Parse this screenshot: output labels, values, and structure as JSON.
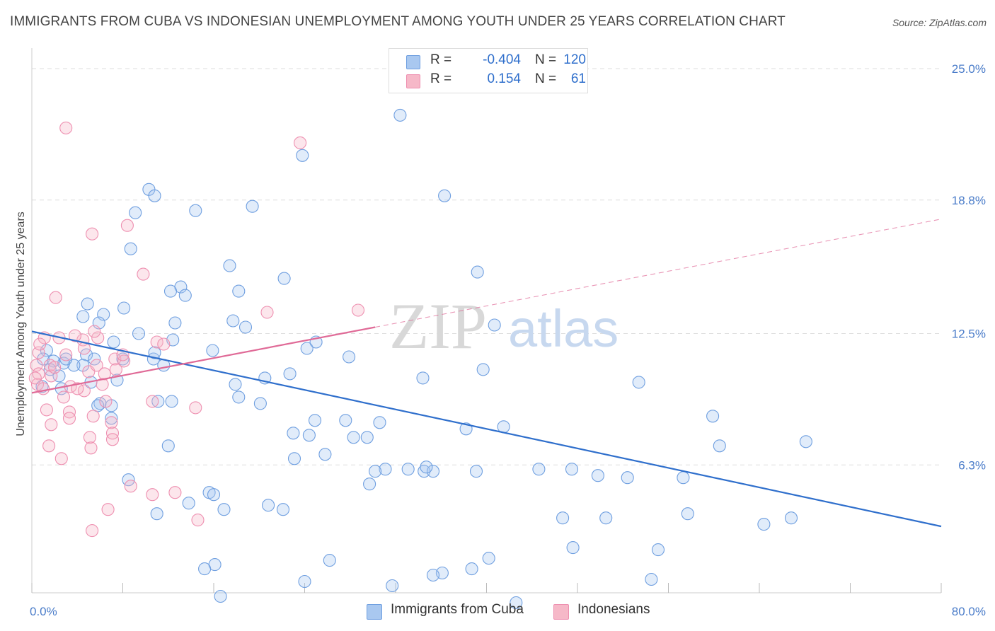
{
  "header": {
    "title": "IMMIGRANTS FROM CUBA VS INDONESIAN UNEMPLOYMENT AMONG YOUTH UNDER 25 YEARS CORRELATION CHART",
    "source": "Source: ZipAtlas.com"
  },
  "watermark": {
    "zip": "ZIP",
    "atlas": "atlas"
  },
  "legend": {
    "rows": [
      {
        "r_label": "R =",
        "r_value": "-0.404",
        "n_label": "N =",
        "n_value": "120",
        "color": "#a9c8f0"
      },
      {
        "r_label": "R =",
        "r_value": "0.154",
        "n_label": "N =",
        "n_value": "61",
        "color": "#f6b8c8"
      }
    ]
  },
  "bottom_legend": {
    "items": [
      {
        "label": "Immigrants from Cuba",
        "color": "#a9c8f0"
      },
      {
        "label": "Indonesians",
        "color": "#f6b8c8"
      }
    ]
  },
  "chart_data": {
    "type": "scatter",
    "title": "IMMIGRANTS FROM CUBA VS INDONESIAN UNEMPLOYMENT AMONG YOUTH UNDER 25 YEARS CORRELATION CHART",
    "xlabel": "",
    "ylabel": "Unemployment Among Youth under 25 years",
    "xlim": [
      0,
      80
    ],
    "ylim": [
      0,
      26
    ],
    "x_tick_labels": [
      "0.0%",
      "80.0%"
    ],
    "y_ticks": [
      6.3,
      12.5,
      18.8,
      25.0
    ],
    "y_tick_labels": [
      "6.3%",
      "12.5%",
      "18.8%",
      "25.0%"
    ],
    "grid": true,
    "colors": {
      "blue_fill": "#a9c8f0",
      "blue_line": "#2f6fcc",
      "pink_fill": "#f6b8c8",
      "pink_line": "#e06a97",
      "axis_text": "#4a7cc9"
    },
    "series": [
      {
        "name": "Immigrants from Cuba",
        "color": "#6f9fe0",
        "trend": {
          "x": [
            0,
            80
          ],
          "y": [
            12.6,
            3.4
          ],
          "style": "solid"
        },
        "points": [
          [
            32.4,
            22.8
          ],
          [
            23.8,
            20.9
          ],
          [
            36.3,
            19.0
          ],
          [
            10.3,
            19.3
          ],
          [
            10.8,
            19.0
          ],
          [
            9.1,
            18.2
          ],
          [
            14.4,
            18.3
          ],
          [
            19.4,
            18.5
          ],
          [
            8.7,
            16.5
          ],
          [
            17.4,
            15.7
          ],
          [
            22.2,
            15.1
          ],
          [
            39.2,
            15.4
          ],
          [
            13.1,
            14.7
          ],
          [
            12.2,
            14.5
          ],
          [
            13.5,
            14.3
          ],
          [
            18.2,
            14.5
          ],
          [
            4.9,
            13.9
          ],
          [
            6.3,
            13.4
          ],
          [
            8.1,
            13.7
          ],
          [
            4.5,
            13.3
          ],
          [
            5.9,
            13.0
          ],
          [
            12.6,
            13.0
          ],
          [
            17.7,
            13.1
          ],
          [
            18.8,
            12.8
          ],
          [
            40.7,
            12.9
          ],
          [
            9.4,
            12.5
          ],
          [
            7.2,
            12.1
          ],
          [
            12.4,
            12.2
          ],
          [
            15.9,
            11.7
          ],
          [
            4.8,
            11.5
          ],
          [
            5.5,
            11.3
          ],
          [
            8.0,
            11.3
          ],
          [
            10.7,
            11.3
          ],
          [
            11.6,
            11.0
          ],
          [
            24.2,
            11.8
          ],
          [
            27.9,
            11.4
          ],
          [
            4.5,
            11.0
          ],
          [
            3.7,
            11.0
          ],
          [
            2.8,
            11.1
          ],
          [
            1.3,
            11.7
          ],
          [
            1.0,
            11.3
          ],
          [
            1.9,
            11.2
          ],
          [
            2.4,
            10.5
          ],
          [
            1.6,
            10.8
          ],
          [
            7.5,
            10.3
          ],
          [
            5.2,
            10.2
          ],
          [
            0.9,
            10.0
          ],
          [
            2.6,
            9.9
          ],
          [
            25.0,
            12.1
          ],
          [
            17.9,
            10.1
          ],
          [
            20.5,
            10.4
          ],
          [
            22.7,
            10.6
          ],
          [
            34.4,
            10.4
          ],
          [
            39.7,
            10.8
          ],
          [
            53.4,
            10.2
          ],
          [
            6.0,
            9.2
          ],
          [
            18.2,
            9.5
          ],
          [
            20.1,
            9.2
          ],
          [
            24.9,
            8.4
          ],
          [
            27.6,
            8.4
          ],
          [
            30.6,
            8.3
          ],
          [
            38.2,
            8.0
          ],
          [
            41.5,
            8.1
          ],
          [
            59.9,
            8.6
          ],
          [
            12.3,
            9.3
          ],
          [
            5.8,
            9.1
          ],
          [
            7.0,
            9.1
          ],
          [
            23.0,
            7.8
          ],
          [
            24.4,
            7.7
          ],
          [
            28.3,
            7.6
          ],
          [
            29.5,
            7.6
          ],
          [
            12.0,
            7.2
          ],
          [
            23.1,
            6.6
          ],
          [
            25.8,
            6.8
          ],
          [
            60.5,
            7.2
          ],
          [
            68.1,
            7.4
          ],
          [
            31.1,
            6.1
          ],
          [
            30.2,
            6.0
          ],
          [
            34.5,
            6.0
          ],
          [
            35.3,
            6.0
          ],
          [
            39.1,
            6.0
          ],
          [
            44.6,
            6.1
          ],
          [
            47.5,
            6.1
          ],
          [
            49.8,
            5.8
          ],
          [
            52.4,
            5.7
          ],
          [
            57.3,
            5.7
          ],
          [
            34.7,
            6.2
          ],
          [
            33.1,
            6.1
          ],
          [
            8.5,
            5.6
          ],
          [
            29.7,
            5.4
          ],
          [
            15.6,
            5.0
          ],
          [
            16.0,
            4.9
          ],
          [
            13.8,
            4.5
          ],
          [
            16.9,
            4.2
          ],
          [
            20.8,
            4.4
          ],
          [
            22.1,
            4.2
          ],
          [
            11.0,
            4.0
          ],
          [
            46.7,
            3.8
          ],
          [
            50.5,
            3.8
          ],
          [
            57.7,
            4.0
          ],
          [
            66.8,
            3.8
          ],
          [
            64.4,
            3.5
          ],
          [
            47.6,
            2.4
          ],
          [
            40.2,
            1.9
          ],
          [
            55.1,
            2.3
          ],
          [
            16.1,
            1.6
          ],
          [
            15.2,
            1.4
          ],
          [
            26.2,
            1.8
          ],
          [
            38.7,
            1.4
          ],
          [
            36.1,
            1.2
          ],
          [
            24.0,
            0.8
          ],
          [
            35.3,
            1.1
          ],
          [
            54.5,
            0.9
          ],
          [
            31.7,
            0.6
          ],
          [
            16.6,
            0.1
          ],
          [
            42.6,
            -0.2
          ],
          [
            10.8,
            11.6
          ],
          [
            3.0,
            11.3
          ],
          [
            11.1,
            9.3
          ],
          [
            7.0,
            8.5
          ]
        ]
      },
      {
        "name": "Indonesians",
        "color": "#ee8fb0",
        "trend": {
          "x": [
            0,
            30.2
          ],
          "y": [
            9.7,
            12.8
          ],
          "style": "solid",
          "extended": {
            "x": [
              30.2,
              80
            ],
            "y": [
              12.8,
              17.9
            ],
            "style": "dashed"
          }
        },
        "points": [
          [
            3.0,
            22.2
          ],
          [
            23.6,
            21.5
          ],
          [
            8.4,
            17.6
          ],
          [
            5.3,
            17.2
          ],
          [
            9.8,
            15.3
          ],
          [
            2.1,
            14.2
          ],
          [
            20.7,
            13.5
          ],
          [
            28.7,
            13.6
          ],
          [
            5.8,
            12.3
          ],
          [
            11.0,
            12.1
          ],
          [
            11.6,
            12.0
          ],
          [
            4.5,
            12.2
          ],
          [
            2.4,
            12.3
          ],
          [
            0.6,
            11.6
          ],
          [
            7.3,
            11.3
          ],
          [
            8.1,
            11.2
          ],
          [
            3.0,
            11.5
          ],
          [
            0.4,
            11.0
          ],
          [
            1.6,
            11.0
          ],
          [
            5.0,
            10.7
          ],
          [
            0.6,
            10.6
          ],
          [
            1.7,
            10.5
          ],
          [
            7.4,
            10.8
          ],
          [
            0.5,
            10.1
          ],
          [
            3.4,
            10.0
          ],
          [
            6.2,
            10.1
          ],
          [
            4.6,
            9.8
          ],
          [
            2.8,
            9.5
          ],
          [
            6.5,
            9.3
          ],
          [
            10.6,
            9.3
          ],
          [
            14.4,
            9.0
          ],
          [
            3.3,
            8.8
          ],
          [
            1.3,
            8.9
          ],
          [
            5.4,
            8.6
          ],
          [
            3.3,
            8.5
          ],
          [
            7.0,
            8.3
          ],
          [
            1.7,
            8.2
          ],
          [
            7.1,
            7.8
          ],
          [
            5.1,
            7.6
          ],
          [
            7.1,
            7.5
          ],
          [
            1.5,
            7.2
          ],
          [
            5.2,
            7.1
          ],
          [
            2.6,
            6.6
          ],
          [
            8.7,
            5.3
          ],
          [
            10.6,
            4.9
          ],
          [
            12.6,
            5.0
          ],
          [
            6.7,
            4.2
          ],
          [
            14.6,
            3.7
          ],
          [
            5.3,
            3.2
          ],
          [
            5.5,
            12.6
          ],
          [
            4.6,
            11.8
          ],
          [
            1.1,
            12.3
          ],
          [
            8.0,
            11.5
          ],
          [
            3.8,
            12.4
          ],
          [
            2.0,
            10.9
          ],
          [
            0.3,
            10.4
          ],
          [
            1.0,
            9.9
          ],
          [
            5.7,
            11.0
          ],
          [
            6.4,
            10.6
          ],
          [
            4.0,
            9.9
          ],
          [
            0.7,
            12.0
          ]
        ]
      }
    ]
  }
}
